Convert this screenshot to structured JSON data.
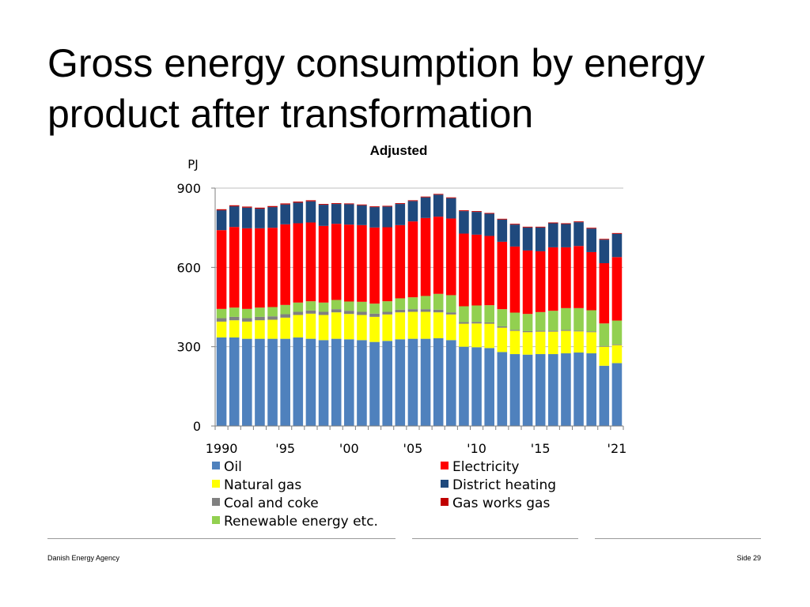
{
  "slide": {
    "title": "Gross energy consumption by energy product after transformation",
    "footer_left": "Danish Energy Agency",
    "footer_right": "Side 29"
  },
  "chart_data": {
    "type": "bar",
    "stacked": true,
    "subtitle": "Adjusted",
    "ylabel": "PJ",
    "ylim": [
      0,
      900
    ],
    "yticks": [
      0,
      300,
      600,
      900
    ],
    "categories": [
      "1990",
      "1991",
      "1992",
      "1993",
      "1994",
      "1995",
      "1996",
      "1997",
      "1998",
      "1999",
      "2000",
      "2001",
      "2002",
      "2003",
      "2004",
      "2005",
      "2006",
      "2007",
      "2008",
      "2009",
      "2010",
      "2011",
      "2012",
      "2013",
      "2014",
      "2015",
      "2016",
      "2017",
      "2018",
      "2019",
      "2020",
      "2021"
    ],
    "xtick_labels": [
      {
        "index": 0,
        "label": "1990"
      },
      {
        "index": 5,
        "label": "'95"
      },
      {
        "index": 10,
        "label": "'00"
      },
      {
        "index": 15,
        "label": "'05"
      },
      {
        "index": 20,
        "label": "'10"
      },
      {
        "index": 25,
        "label": "'15"
      },
      {
        "index": 31,
        "label": "'21"
      }
    ],
    "series": [
      {
        "name": "Oil",
        "color": "#4f81bd",
        "values": [
          335,
          335,
          330,
          330,
          330,
          330,
          335,
          330,
          325,
          330,
          328,
          325,
          318,
          322,
          328,
          330,
          330,
          332,
          325,
          300,
          298,
          295,
          280,
          272,
          270,
          272,
          272,
          275,
          278,
          275,
          228,
          238
        ]
      },
      {
        "name": "Natural gas",
        "color": "#ffff00",
        "values": [
          60,
          65,
          65,
          70,
          72,
          80,
          85,
          95,
          95,
          100,
          96,
          95,
          95,
          100,
          102,
          102,
          102,
          98,
          97,
          87,
          90,
          92,
          92,
          88,
          85,
          85,
          85,
          85,
          80,
          80,
          72,
          68
        ]
      },
      {
        "name": "Coal and coke",
        "color": "#808080",
        "values": [
          13,
          13,
          13,
          13,
          13,
          13,
          12,
          12,
          12,
          12,
          12,
          12,
          12,
          10,
          10,
          10,
          10,
          10,
          8,
          6,
          6,
          5,
          5,
          4,
          4,
          4,
          4,
          4,
          3,
          3,
          3,
          3
        ]
      },
      {
        "name": "Renewable energy etc.",
        "color": "#92d050",
        "values": [
          35,
          35,
          35,
          35,
          35,
          35,
          35,
          35,
          35,
          35,
          35,
          38,
          38,
          40,
          43,
          45,
          50,
          60,
          65,
          60,
          62,
          65,
          65,
          65,
          65,
          70,
          75,
          82,
          85,
          80,
          85,
          90
        ]
      },
      {
        "name": "Electricity",
        "color": "#ff0000",
        "values": [
          298,
          305,
          305,
          300,
          300,
          305,
          300,
          298,
          290,
          288,
          291,
          290,
          288,
          280,
          277,
          287,
          295,
          292,
          290,
          275,
          268,
          262,
          255,
          250,
          240,
          230,
          240,
          230,
          235,
          220,
          228,
          240
        ]
      },
      {
        "name": "District heating",
        "color": "#1f497d",
        "values": [
          75,
          78,
          78,
          74,
          78,
          75,
          78,
          80,
          80,
          75,
          77,
          75,
          77,
          78,
          80,
          77,
          78,
          83,
          77,
          85,
          86,
          84,
          84,
          83,
          87,
          90,
          91,
          88,
          90,
          89,
          89,
          88
        ]
      },
      {
        "name": "Gas works gas",
        "color": "#c00000",
        "values": [
          4,
          4,
          4,
          4,
          4,
          4,
          4,
          4,
          3,
          3,
          3,
          3,
          3,
          3,
          3,
          3,
          3,
          3,
          3,
          3,
          3,
          3,
          3,
          3,
          3,
          3,
          3,
          3,
          3,
          3,
          3,
          3
        ]
      }
    ],
    "legend": [
      {
        "name": "Oil",
        "color": "#4f81bd"
      },
      {
        "name": "Natural gas",
        "color": "#ffff00"
      },
      {
        "name": "Coal and coke",
        "color": "#808080"
      },
      {
        "name": "Renewable energy etc.",
        "color": "#92d050"
      },
      {
        "name": "Electricity",
        "color": "#ff0000"
      },
      {
        "name": "District heating",
        "color": "#1f497d"
      },
      {
        "name": "Gas works gas",
        "color": "#c00000"
      }
    ],
    "legend_position": "bottom"
  }
}
